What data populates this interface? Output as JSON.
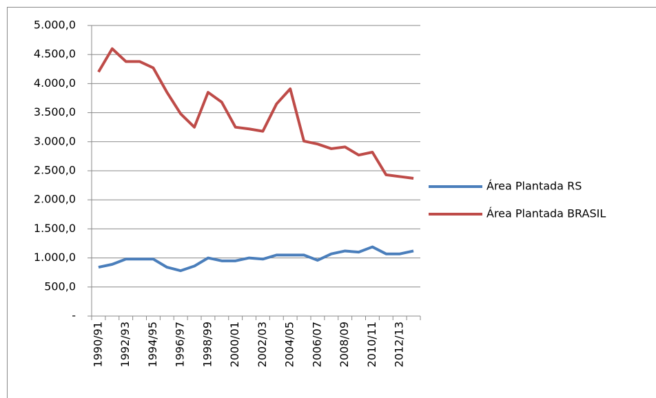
{
  "chart_data": {
    "type": "line",
    "categories": [
      "1990/91",
      null,
      "1992/93",
      null,
      "1994/95",
      null,
      "1996/97",
      null,
      "1998/99",
      null,
      "2000/01",
      null,
      "2002/03",
      null,
      "2004/05",
      null,
      "2006/07",
      null,
      "2008/09",
      null,
      "2010/11",
      null,
      "2012/13",
      null
    ],
    "series": [
      {
        "name": "Área Plantada RS",
        "color": "#4a7ebb",
        "values": [
          840,
          890,
          980,
          980,
          980,
          840,
          780,
          860,
          1000,
          950,
          950,
          1000,
          980,
          1050,
          1050,
          1050,
          960,
          1070,
          1120,
          1100,
          1190,
          1070,
          1070,
          1120
        ]
      },
      {
        "name": "Área Plantada BRASIL",
        "color": "#be4b48",
        "values": [
          4200,
          4600,
          4380,
          4380,
          4270,
          3850,
          3480,
          3250,
          3850,
          3680,
          3250,
          3220,
          3180,
          3650,
          3910,
          3010,
          2960,
          2880,
          2910,
          2770,
          2820,
          2430,
          2400,
          2370
        ]
      }
    ],
    "ylim": [
      0,
      5000
    ],
    "yticks": [
      {
        "value": 0,
        "label": "-"
      },
      {
        "value": 500,
        "label": "500,0"
      },
      {
        "value": 1000,
        "label": "1.000,0"
      },
      {
        "value": 1500,
        "label": "1.500,0"
      },
      {
        "value": 2000,
        "label": "2.000,0"
      },
      {
        "value": 2500,
        "label": "2.500,0"
      },
      {
        "value": 3000,
        "label": "3.000,0"
      },
      {
        "value": 3500,
        "label": "3.500,0"
      },
      {
        "value": 4000,
        "label": "4.000,0"
      },
      {
        "value": 4500,
        "label": "4.500,0"
      },
      {
        "value": 5000,
        "label": "5.000,0"
      }
    ],
    "grid": true,
    "legend": "right"
  }
}
